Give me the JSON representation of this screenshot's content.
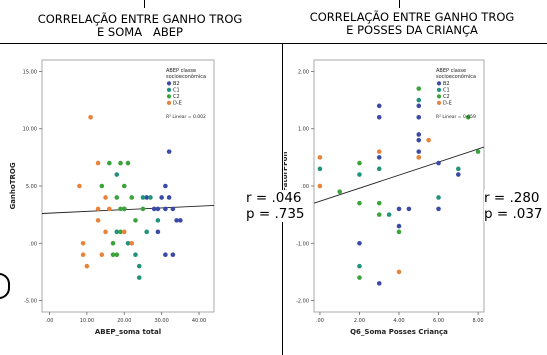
{
  "panels": [
    {
      "title_line1": "CORRELAÇÃO ENTRE GANHO TROG",
      "title_line2": "E SOMA   ABEP",
      "stats": {
        "r": "r = .046",
        "p": "p = .735"
      }
    },
    {
      "title_line1": "CORRELAÇÃO ENTRE GANHO TROG",
      "title_line2": "E POSSES DA CRIANÇA",
      "stats": {
        "r": "r = .280",
        "p": "p = .037"
      }
    }
  ],
  "chart_data": [
    {
      "type": "scatter",
      "xlabel": "ABEP_soma total",
      "ylabel": "GanhoTROG",
      "xlim": [
        -2,
        44
      ],
      "ylim": [
        -6,
        16
      ],
      "xticks": [
        0,
        10,
        20,
        30,
        40
      ],
      "xtick_labels": [
        ".00",
        "10.00",
        "20.00",
        "30.00",
        "40.00"
      ],
      "yticks": [
        -5,
        0,
        5,
        10,
        15
      ],
      "ytick_labels": [
        "-5.00",
        ".00",
        "5.00",
        "10.00",
        "15.00"
      ],
      "legend": {
        "title": "ABEP classe socioeconômica",
        "entries": [
          "B2",
          "C1",
          "C2",
          "D-E"
        ],
        "position": "top-right"
      },
      "fit_label": "R² Linear = 0.002",
      "fit_line": {
        "x": [
          -2,
          44
        ],
        "y": [
          2.6,
          3.3
        ]
      },
      "colors": {
        "B2": "#3b4aa6",
        "C1": "#21937c",
        "C2": "#3aa43a",
        "D-E": "#e8833a"
      },
      "series": [
        {
          "name": "B2",
          "points": [
            [
              26,
              4
            ],
            [
              28,
              3
            ],
            [
              29,
              3
            ],
            [
              30,
              4
            ],
            [
              31,
              3
            ],
            [
              32,
              4
            ],
            [
              33,
              3
            ],
            [
              34,
              2
            ],
            [
              35,
              2
            ],
            [
              32,
              8
            ],
            [
              31,
              5
            ],
            [
              31,
              -1
            ],
            [
              33,
              -1
            ],
            [
              29,
              1
            ]
          ]
        },
        {
          "name": "C1",
          "points": [
            [
              18,
              6
            ],
            [
              18,
              1
            ],
            [
              20,
              3
            ],
            [
              21,
              0
            ],
            [
              23,
              -1
            ],
            [
              24,
              -3
            ],
            [
              25,
              4
            ],
            [
              26,
              1
            ],
            [
              27,
              4
            ],
            [
              29,
              2
            ],
            [
              24,
              -2
            ]
          ]
        },
        {
          "name": "C2",
          "points": [
            [
              14,
              5
            ],
            [
              16,
              7
            ],
            [
              17,
              0
            ],
            [
              17,
              -1
            ],
            [
              18,
              -1
            ],
            [
              18,
              4
            ],
            [
              19,
              7
            ],
            [
              19,
              3
            ],
            [
              20,
              3
            ],
            [
              20,
              5
            ],
            [
              21,
              7
            ],
            [
              22,
              4
            ],
            [
              23,
              2
            ],
            [
              19,
              1
            ],
            [
              25,
              3
            ]
          ]
        },
        {
          "name": "D-E",
          "points": [
            [
              8,
              5
            ],
            [
              9,
              -1
            ],
            [
              10,
              -2
            ],
            [
              11,
              11
            ],
            [
              13,
              7
            ],
            [
              13,
              2
            ],
            [
              13,
              3
            ],
            [
              15,
              1
            ],
            [
              15,
              4
            ],
            [
              16,
              3
            ],
            [
              20,
              1
            ],
            [
              22,
              0
            ],
            [
              9,
              0
            ],
            [
              14,
              -1
            ]
          ]
        }
      ]
    },
    {
      "type": "scatter",
      "xlabel": "Q6_Soma Posses Criança",
      "ylabel": "Ganho_FatorPFon",
      "xlim": [
        -0.3,
        8.3
      ],
      "ylim": [
        -2.2,
        2.2
      ],
      "xticks": [
        0,
        2,
        4,
        6,
        8
      ],
      "xtick_labels": [
        ".00",
        "2.00",
        "4.00",
        "6.00",
        "8.00"
      ],
      "yticks": [
        -2,
        -1,
        0,
        1,
        2
      ],
      "ytick_labels": [
        "-2.00",
        "-1.00",
        ".00",
        "1.00",
        "2.00"
      ],
      "legend": {
        "title": "ABEP classe socioeconômica",
        "entries": [
          "B2",
          "C1",
          "C2",
          "D-E"
        ],
        "position": "top-right"
      },
      "fit_label": "R² Linear = 0.059",
      "fit_line": {
        "x": [
          -0.3,
          8.3
        ],
        "y": [
          -0.3,
          0.68
        ]
      },
      "colors": {
        "B2": "#3b4aa6",
        "C1": "#21937c",
        "C2": "#3aa43a",
        "D-E": "#e8833a"
      },
      "series": [
        {
          "name": "B2",
          "points": [
            [
              2,
              -1
            ],
            [
              3,
              1.4
            ],
            [
              3,
              1.2
            ],
            [
              3,
              0.5
            ],
            [
              3,
              -1.7
            ],
            [
              4,
              -0.7
            ],
            [
              4,
              -0.4
            ],
            [
              4.5,
              -0.4
            ],
            [
              5,
              1.4
            ],
            [
              5,
              1.2
            ],
            [
              5,
              0.9
            ],
            [
              5,
              0.8
            ],
            [
              5,
              0.6
            ],
            [
              6,
              0.4
            ],
            [
              6,
              -0.4
            ],
            [
              7,
              0.2
            ]
          ]
        },
        {
          "name": "C1",
          "points": [
            [
              0,
              0.3
            ],
            [
              2,
              0.2
            ],
            [
              3,
              0.3
            ],
            [
              3.5,
              -0.5
            ],
            [
              5,
              1.5
            ],
            [
              6,
              -0.2
            ],
            [
              7,
              0.3
            ],
            [
              2,
              -1.4
            ]
          ]
        },
        {
          "name": "C2",
          "points": [
            [
              1,
              -0.1
            ],
            [
              2,
              0.4
            ],
            [
              2,
              -0.3
            ],
            [
              3,
              -0.3
            ],
            [
              3,
              -0.5
            ],
            [
              4,
              -0.8
            ],
            [
              5,
              1.7
            ],
            [
              5,
              0.5
            ],
            [
              7.5,
              1.2
            ],
            [
              8,
              0.6
            ],
            [
              2,
              -1.6
            ]
          ]
        },
        {
          "name": "D-E",
          "points": [
            [
              0,
              0.5
            ],
            [
              0,
              0.0
            ],
            [
              3,
              0.6
            ],
            [
              4,
              -1.5
            ],
            [
              5,
              0.5
            ],
            [
              5.5,
              0.8
            ]
          ]
        }
      ]
    }
  ]
}
